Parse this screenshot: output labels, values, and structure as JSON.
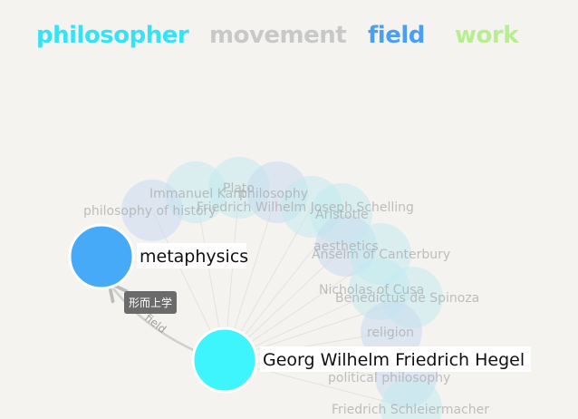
{
  "legend": {
    "philosopher": {
      "label": "philosopher",
      "color": "#36e2f6"
    },
    "movement": {
      "label": "movement",
      "color": "#c8c8c8"
    },
    "field": {
      "label": "field",
      "color": "#4a9ff5"
    },
    "work": {
      "label": "work",
      "color": "#b7ef8e"
    }
  },
  "background_nodes": [
    {
      "label": "Immanuel Kant",
      "type": "philosopher"
    },
    {
      "label": "Plato",
      "type": "philosopher"
    },
    {
      "label": "philosophy",
      "type": "field"
    },
    {
      "label": "philosophy of history",
      "type": "field"
    },
    {
      "label": "Friedrich Wilhelm Joseph Schelling",
      "type": "philosopher"
    },
    {
      "label": "Aristotle",
      "type": "philosopher"
    },
    {
      "label": "aesthetics",
      "type": "field"
    },
    {
      "label": "Anselm of Canterbury",
      "type": "philosopher"
    },
    {
      "label": "Nicholas of Cusa",
      "type": "philosopher"
    },
    {
      "label": "Benedictus de Spinoza",
      "type": "philosopher"
    },
    {
      "label": "religion",
      "type": "field"
    },
    {
      "label": "political philosophy",
      "type": "field"
    },
    {
      "label": "Friedrich Schleiermacher",
      "type": "philosopher"
    }
  ],
  "focus_nodes": {
    "metaphysics": {
      "label": "metaphysics",
      "type": "field"
    },
    "hegel": {
      "label": "Georg Wilhelm Friedrich Hegel",
      "type": "philosopher"
    }
  },
  "edge": {
    "label": "field"
  },
  "tooltip": {
    "text": "形而上学"
  }
}
